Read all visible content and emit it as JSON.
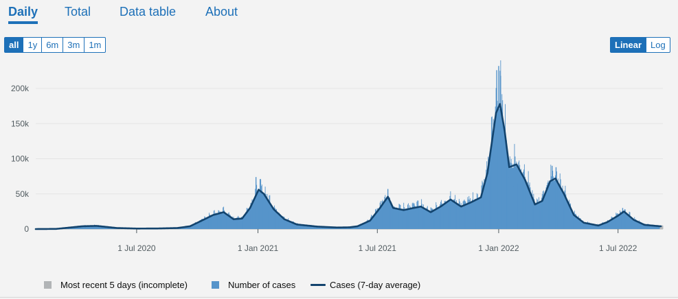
{
  "tabs": [
    {
      "label": "Daily",
      "active": true
    },
    {
      "label": "Total",
      "active": false
    },
    {
      "label": "Data table",
      "active": false
    },
    {
      "label": "About",
      "active": false
    }
  ],
  "range_buttons": [
    {
      "label": "all",
      "selected": true
    },
    {
      "label": "1y",
      "selected": false
    },
    {
      "label": "6m",
      "selected": false
    },
    {
      "label": "3m",
      "selected": false
    },
    {
      "label": "1m",
      "selected": false
    }
  ],
  "scale_buttons": [
    {
      "label": "Linear",
      "selected": true
    },
    {
      "label": "Log",
      "selected": false
    }
  ],
  "legend": {
    "incomplete": "Most recent 5 days (incomplete)",
    "cases": "Number of cases",
    "average": "Cases (7-day average)"
  },
  "colors": {
    "accent": "#1d70b8",
    "bars": "#5694ca",
    "average_line": "#12436d",
    "incomplete": "#b1b4b6"
  },
  "chart_data": {
    "type": "bar",
    "x_range": [
      "2020-01-30",
      "2022-09-07"
    ],
    "ylim": [
      0,
      240000
    ],
    "y_ticks": [
      0,
      50000,
      100000,
      150000,
      200000
    ],
    "y_tick_labels": [
      "0",
      "50k",
      "100k",
      "150k",
      "200k"
    ],
    "x_ticks": [
      "2020-07-01",
      "2021-01-01",
      "2021-07-01",
      "2022-01-01",
      "2022-07-01"
    ],
    "x_tick_labels": [
      "1 Jul 2020",
      "1 Jan 2021",
      "1 Jul 2021",
      "1 Jan 2022",
      "1 Jul 2022"
    ],
    "grid": true,
    "legend_position": "bottom",
    "incomplete_days": 5,
    "average_series": {
      "name": "Cases (7-day average)",
      "points": [
        [
          "2020-01-30",
          0
        ],
        [
          "2020-03-01",
          200
        ],
        [
          "2020-04-10",
          4000
        ],
        [
          "2020-05-01",
          4500
        ],
        [
          "2020-06-01",
          1500
        ],
        [
          "2020-07-01",
          700
        ],
        [
          "2020-08-01",
          800
        ],
        [
          "2020-09-01",
          1500
        ],
        [
          "2020-09-20",
          4000
        ],
        [
          "2020-10-10",
          13000
        ],
        [
          "2020-10-25",
          20000
        ],
        [
          "2020-11-10",
          24000
        ],
        [
          "2020-11-25",
          14000
        ],
        [
          "2020-12-08",
          15000
        ],
        [
          "2020-12-20",
          30000
        ],
        [
          "2021-01-02",
          56000
        ],
        [
          "2021-01-10",
          50000
        ],
        [
          "2021-01-25",
          28000
        ],
        [
          "2021-02-10",
          14000
        ],
        [
          "2021-03-01",
          6500
        ],
        [
          "2021-04-01",
          3500
        ],
        [
          "2021-05-01",
          2200
        ],
        [
          "2021-05-20",
          2500
        ],
        [
          "2021-06-01",
          4000
        ],
        [
          "2021-06-20",
          12000
        ],
        [
          "2021-07-05",
          30000
        ],
        [
          "2021-07-17",
          46000
        ],
        [
          "2021-07-25",
          30000
        ],
        [
          "2021-08-10",
          27000
        ],
        [
          "2021-08-25",
          30000
        ],
        [
          "2021-09-05",
          32000
        ],
        [
          "2021-09-20",
          24000
        ],
        [
          "2021-10-05",
          32000
        ],
        [
          "2021-10-20",
          42000
        ],
        [
          "2021-11-05",
          32000
        ],
        [
          "2021-11-20",
          38000
        ],
        [
          "2021-12-05",
          45000
        ],
        [
          "2021-12-15",
          80000
        ],
        [
          "2021-12-28",
          165000
        ],
        [
          "2022-01-03",
          178000
        ],
        [
          "2022-01-10",
          140000
        ],
        [
          "2022-01-17",
          88000
        ],
        [
          "2022-01-28",
          92000
        ],
        [
          "2022-02-10",
          70000
        ],
        [
          "2022-02-25",
          35000
        ],
        [
          "2022-03-08",
          40000
        ],
        [
          "2022-03-20",
          68000
        ],
        [
          "2022-03-28",
          72000
        ],
        [
          "2022-04-10",
          50000
        ],
        [
          "2022-04-25",
          20000
        ],
        [
          "2022-05-10",
          9000
        ],
        [
          "2022-06-01",
          5000
        ],
        [
          "2022-06-15",
          10000
        ],
        [
          "2022-07-01",
          19000
        ],
        [
          "2022-07-10",
          25000
        ],
        [
          "2022-07-25",
          13000
        ],
        [
          "2022-08-10",
          6000
        ],
        [
          "2022-09-02",
          4000
        ]
      ]
    },
    "bar_spikes": [
      [
        "2020-12-29",
        74000
      ],
      [
        "2021-01-05",
        70000
      ],
      [
        "2021-07-17",
        57000
      ],
      [
        "2021-12-29",
        226000
      ],
      [
        "2022-01-01",
        232000
      ],
      [
        "2022-01-04",
        218000
      ],
      [
        "2022-03-23",
        90000
      ],
      [
        "2022-03-29",
        88000
      ],
      [
        "2022-07-08",
        30000
      ]
    ]
  }
}
